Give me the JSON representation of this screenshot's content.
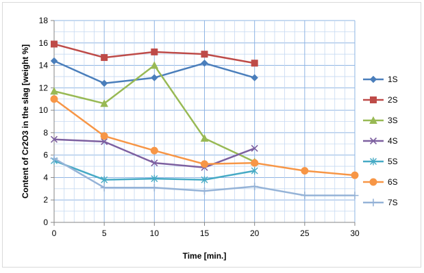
{
  "chart_data": {
    "type": "line",
    "title": "",
    "xlabel": "Time [min.]",
    "ylabel": "Content of Cr2O3 in the slag  [weight %]",
    "xlim": [
      0,
      30
    ],
    "ylim": [
      0,
      18
    ],
    "xticks": [
      0,
      5,
      10,
      15,
      20,
      25,
      30
    ],
    "yticks": [
      0,
      2,
      4,
      6,
      8,
      10,
      12,
      14,
      16,
      18
    ],
    "grid": true,
    "legend_position": "right",
    "series": [
      {
        "name": "1S",
        "color": "#4A7EBB",
        "marker": "diamond",
        "x": [
          0,
          5,
          10,
          15,
          20
        ],
        "y": [
          14.4,
          12.4,
          12.9,
          14.2,
          12.9
        ]
      },
      {
        "name": "2S",
        "color": "#BE4B48",
        "marker": "square",
        "x": [
          0,
          5,
          10,
          15,
          20
        ],
        "y": [
          15.9,
          14.7,
          15.2,
          15.0,
          14.2
        ]
      },
      {
        "name": "3S",
        "color": "#98B954",
        "marker": "triangle",
        "x": [
          0,
          5,
          10,
          15,
          20
        ],
        "y": [
          11.7,
          10.6,
          14.0,
          7.5,
          5.4
        ]
      },
      {
        "name": "4S",
        "color": "#7D60A0",
        "marker": "x",
        "x": [
          0,
          5,
          10,
          15,
          20
        ],
        "y": [
          7.4,
          7.2,
          5.3,
          4.9,
          6.6
        ]
      },
      {
        "name": "5S",
        "color": "#46AAC5",
        "marker": "star",
        "x": [
          0,
          5,
          10,
          15,
          20
        ],
        "y": [
          5.5,
          3.8,
          3.9,
          3.8,
          4.6
        ]
      },
      {
        "name": "6S",
        "color": "#F79646",
        "marker": "circle",
        "x": [
          0,
          5,
          10,
          15,
          20,
          25,
          30
        ],
        "y": [
          11.0,
          7.7,
          6.4,
          5.2,
          5.3,
          4.6,
          4.2
        ]
      },
      {
        "name": "7S",
        "color": "#95B3D7",
        "marker": "plus",
        "x": [
          0,
          5,
          10,
          15,
          20,
          25,
          30
        ],
        "y": [
          5.7,
          3.1,
          3.1,
          2.8,
          3.2,
          2.4,
          2.4
        ]
      }
    ]
  }
}
